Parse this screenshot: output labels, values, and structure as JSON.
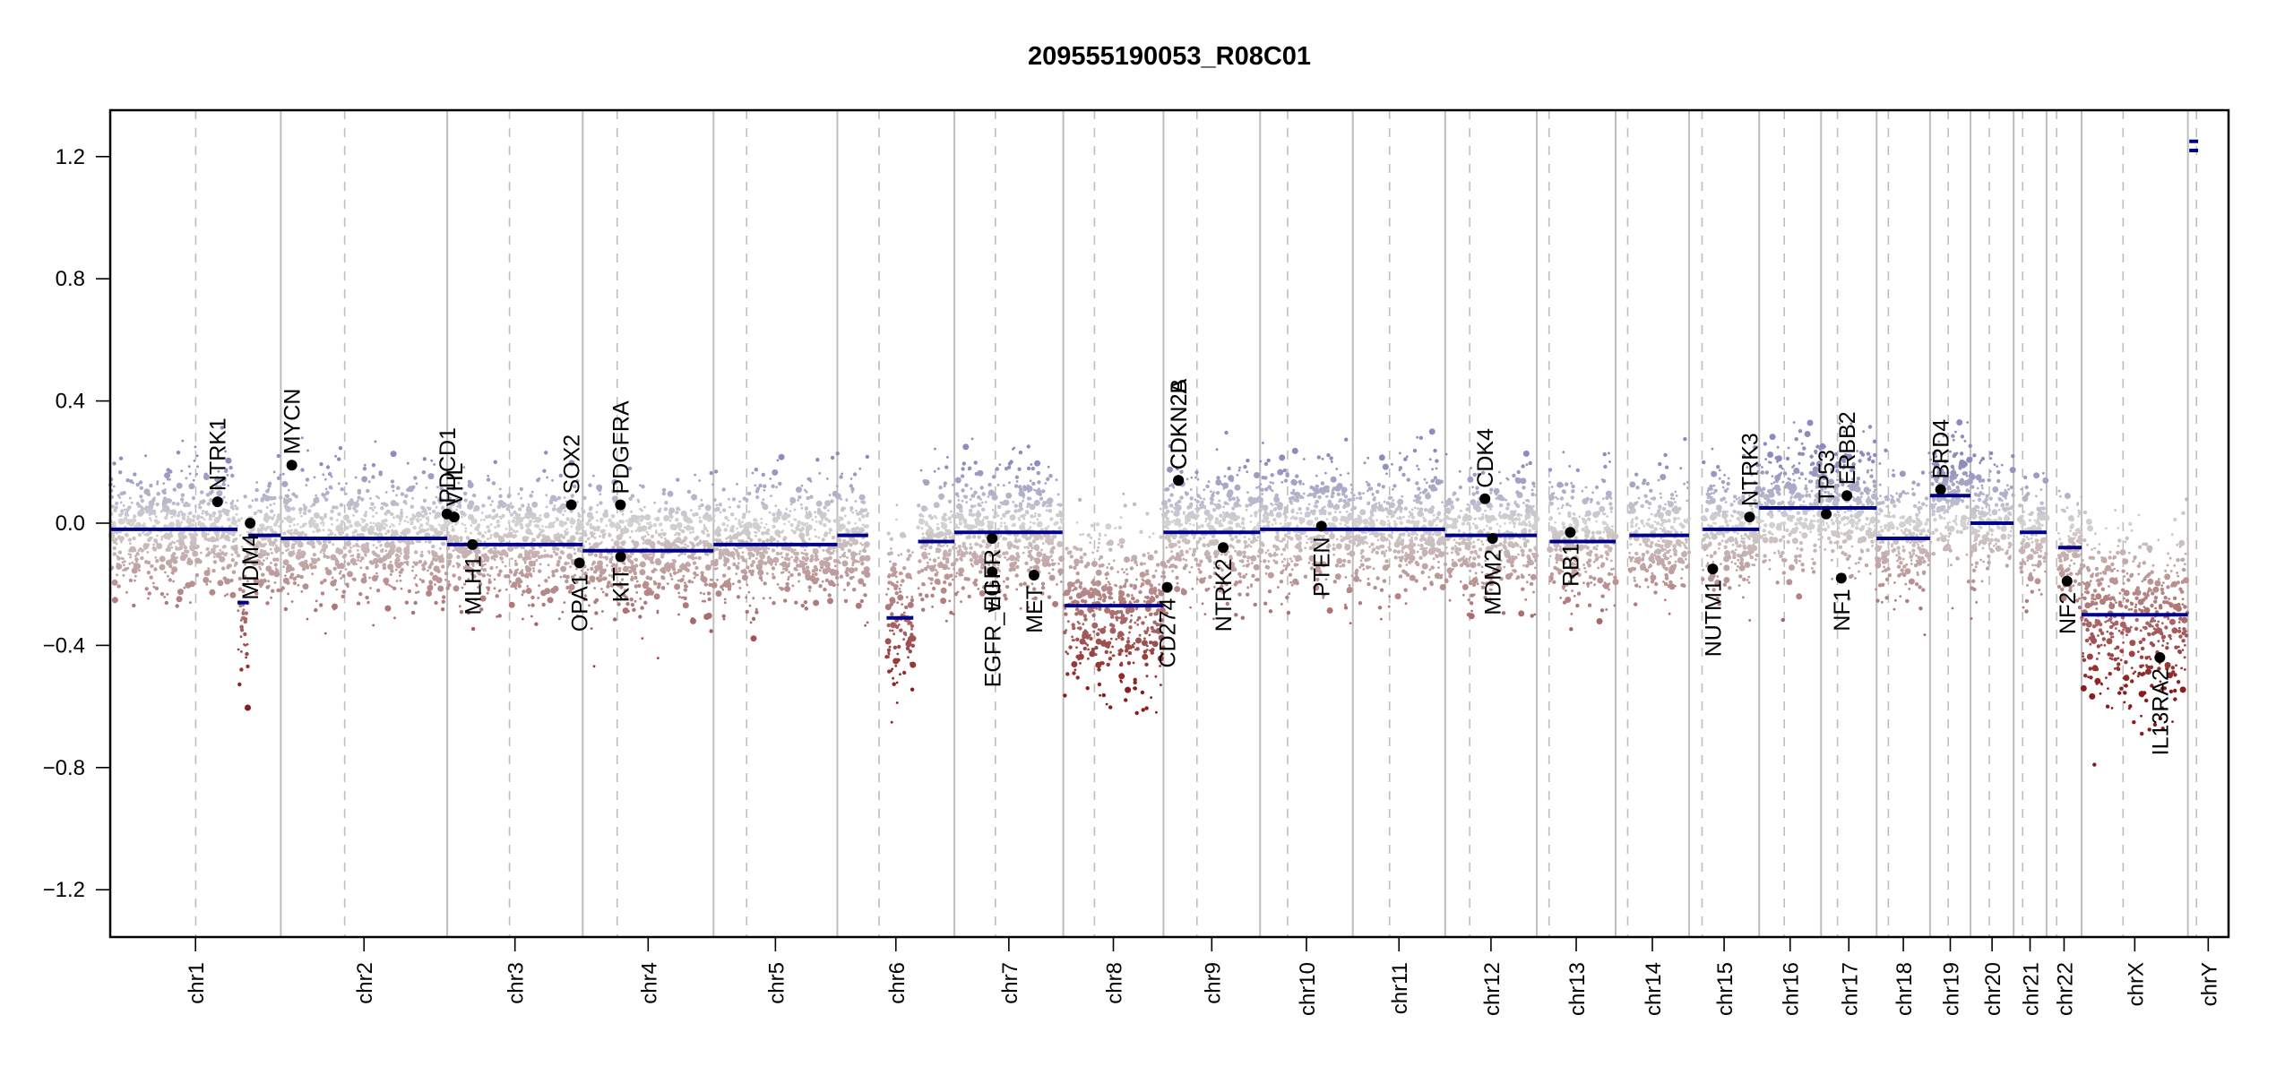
{
  "chart_data": {
    "type": "scatter",
    "title": "209555190053_R08C01",
    "xlabel": "",
    "ylabel": "",
    "ylim": [
      -1.35,
      1.35
    ],
    "yticks": [
      1.2,
      0.8,
      0.4,
      0.0,
      -0.4,
      -0.8,
      -1.2
    ],
    "ytick_labels": [
      "1.2",
      "0.8",
      "0.4",
      "0.0",
      "−0.4",
      "−0.8",
      "−1.2"
    ],
    "grid": false,
    "colors": {
      "gain": "#8b8bbf",
      "neutral": "#d3d3d3",
      "loss": "#8b1a1a",
      "segment": "#00008b",
      "gene_point": "#000000",
      "chrom_boundary": "#bebebe",
      "centromere": "#bebebe"
    },
    "chromosomes": [
      {
        "name": "chr1",
        "length_mb": 249.3,
        "centromere_mb": 125.0
      },
      {
        "name": "chr2",
        "length_mb": 243.2,
        "centromere_mb": 93.3
      },
      {
        "name": "chr3",
        "length_mb": 198.0,
        "centromere_mb": 91.0
      },
      {
        "name": "chr4",
        "length_mb": 191.2,
        "centromere_mb": 50.4
      },
      {
        "name": "chr5",
        "length_mb": 180.9,
        "centromere_mb": 48.4
      },
      {
        "name": "chr6",
        "length_mb": 171.1,
        "centromere_mb": 61.0
      },
      {
        "name": "chr7",
        "length_mb": 159.1,
        "centromere_mb": 59.9
      },
      {
        "name": "chr8",
        "length_mb": 146.4,
        "centromere_mb": 45.6
      },
      {
        "name": "chr9",
        "length_mb": 141.2,
        "centromere_mb": 49.0
      },
      {
        "name": "chr10",
        "length_mb": 135.5,
        "centromere_mb": 40.2
      },
      {
        "name": "chr11",
        "length_mb": 135.0,
        "centromere_mb": 53.7
      },
      {
        "name": "chr12",
        "length_mb": 133.9,
        "centromere_mb": 35.8
      },
      {
        "name": "chr13",
        "length_mb": 115.2,
        "centromere_mb": 17.9
      },
      {
        "name": "chr14",
        "length_mb": 107.3,
        "centromere_mb": 17.6
      },
      {
        "name": "chr15",
        "length_mb": 102.5,
        "centromere_mb": 19.0
      },
      {
        "name": "chr16",
        "length_mb": 90.4,
        "centromere_mb": 36.6
      },
      {
        "name": "chr17",
        "length_mb": 81.2,
        "centromere_mb": 24.0
      },
      {
        "name": "chr18",
        "length_mb": 78.1,
        "centromere_mb": 17.2
      },
      {
        "name": "chr19",
        "length_mb": 59.1,
        "centromere_mb": 26.5
      },
      {
        "name": "chr20",
        "length_mb": 63.0,
        "centromere_mb": 27.5
      },
      {
        "name": "chr21",
        "length_mb": 48.1,
        "centromere_mb": 13.2
      },
      {
        "name": "chr22",
        "length_mb": 51.3,
        "centromere_mb": 14.7
      },
      {
        "name": "chrX",
        "length_mb": 155.3,
        "centromere_mb": 60.6
      },
      {
        "name": "chrY",
        "length_mb": 59.4,
        "centromere_mb": 12.5
      }
    ],
    "segments": [
      {
        "chr": "chr1",
        "start_mb": 0,
        "end_mb": 186,
        "value": -0.02
      },
      {
        "chr": "chr1",
        "start_mb": 186,
        "end_mb": 202,
        "value": -0.26
      },
      {
        "chr": "chr1",
        "start_mb": 202,
        "end_mb": 249.3,
        "value": -0.04
      },
      {
        "chr": "chr2",
        "start_mb": 0,
        "end_mb": 243.2,
        "value": -0.05
      },
      {
        "chr": "chr3",
        "start_mb": 0,
        "end_mb": 198.0,
        "value": -0.07
      },
      {
        "chr": "chr4",
        "start_mb": 0,
        "end_mb": 191.2,
        "value": -0.09
      },
      {
        "chr": "chr5",
        "start_mb": 0,
        "end_mb": 180.9,
        "value": -0.07
      },
      {
        "chr": "chr6",
        "start_mb": 0,
        "end_mb": 45,
        "value": -0.04
      },
      {
        "chr": "chr6",
        "start_mb": 72,
        "end_mb": 111,
        "value": -0.31
      },
      {
        "chr": "chr6",
        "start_mb": 118,
        "end_mb": 171.1,
        "value": -0.06
      },
      {
        "chr": "chr7",
        "start_mb": 0,
        "end_mb": 158,
        "value": -0.03
      },
      {
        "chr": "chr8",
        "start_mb": 2,
        "end_mb": 146.4,
        "value": -0.27
      },
      {
        "chr": "chr9",
        "start_mb": 0,
        "end_mb": 141.2,
        "value": -0.03
      },
      {
        "chr": "chr10",
        "start_mb": 0,
        "end_mb": 135.5,
        "value": -0.02
      },
      {
        "chr": "chr11",
        "start_mb": 0,
        "end_mb": 135.0,
        "value": -0.02
      },
      {
        "chr": "chr12",
        "start_mb": 0,
        "end_mb": 133.9,
        "value": -0.04
      },
      {
        "chr": "chr13",
        "start_mb": 19,
        "end_mb": 115.2,
        "value": -0.06
      },
      {
        "chr": "chr14",
        "start_mb": 20,
        "end_mb": 107.3,
        "value": -0.04
      },
      {
        "chr": "chr15",
        "start_mb": 20,
        "end_mb": 102.5,
        "value": -0.02
      },
      {
        "chr": "chr16",
        "start_mb": 0,
        "end_mb": 90.4,
        "value": 0.05
      },
      {
        "chr": "chr17",
        "start_mb": 0,
        "end_mb": 81.2,
        "value": 0.05
      },
      {
        "chr": "chr18",
        "start_mb": 0,
        "end_mb": 78.1,
        "value": -0.05
      },
      {
        "chr": "chr19",
        "start_mb": 0,
        "end_mb": 59.1,
        "value": 0.09
      },
      {
        "chr": "chr20",
        "start_mb": 0,
        "end_mb": 63.0,
        "value": 0.0
      },
      {
        "chr": "chr21",
        "start_mb": 9,
        "end_mb": 48.1,
        "value": -0.03
      },
      {
        "chr": "chr22",
        "start_mb": 17,
        "end_mb": 51.3,
        "value": -0.08
      },
      {
        "chr": "chrX",
        "start_mb": 0,
        "end_mb": 155.3,
        "value": -0.3
      },
      {
        "chr": "chrY",
        "start_mb": 2,
        "end_mb": 15,
        "value": 1.25
      },
      {
        "chr": "chrY",
        "start_mb": 2,
        "end_mb": 15,
        "value": 1.22
      }
    ],
    "genes": [
      {
        "name": "NTRK1",
        "chr": "chr1",
        "pos_mb": 156.8,
        "value": 0.07,
        "label_side": "above"
      },
      {
        "name": "MDM4",
        "chr": "chr1",
        "pos_mb": 204.5,
        "value": 0.0,
        "label_side": "below"
      },
      {
        "name": "MYCN",
        "chr": "chr2",
        "pos_mb": 16.1,
        "value": 0.19,
        "label_side": "above"
      },
      {
        "name": "PDCD1",
        "chr": "chr2",
        "pos_mb": 242.8,
        "value": 0.03,
        "label_side": "above"
      },
      {
        "name": "VHL",
        "chr": "chr3",
        "pos_mb": 10.2,
        "value": 0.02,
        "label_side": "above"
      },
      {
        "name": "MLH1",
        "chr": "chr3",
        "pos_mb": 37.0,
        "value": -0.07,
        "label_side": "below"
      },
      {
        "name": "SOX2",
        "chr": "chr3",
        "pos_mb": 181.4,
        "value": 0.06,
        "label_side": "above"
      },
      {
        "name": "OPA1",
        "chr": "chr3",
        "pos_mb": 193.3,
        "value": -0.13,
        "label_side": "below"
      },
      {
        "name": "PDGFRA",
        "chr": "chr4",
        "pos_mb": 55.1,
        "value": 0.06,
        "label_side": "above"
      },
      {
        "name": "KIT",
        "chr": "chr4",
        "pos_mb": 55.5,
        "value": -0.11,
        "label_side": "below"
      },
      {
        "name": "EGFR",
        "chr": "chr7",
        "pos_mb": 55.1,
        "value": -0.05,
        "label_side": "below"
      },
      {
        "name": "EGFR_vIII",
        "chr": "chr7",
        "pos_mb": 55.2,
        "value": -0.16,
        "label_side": "below"
      },
      {
        "name": "MET",
        "chr": "chr7",
        "pos_mb": 116.3,
        "value": -0.17,
        "label_side": "below"
      },
      {
        "name": "CD274",
        "chr": "chr9",
        "pos_mb": 5.5,
        "value": -0.21,
        "label_side": "below"
      },
      {
        "name": "CDKN2A",
        "chr": "chr9",
        "pos_mb": 21.9,
        "value": 0.14,
        "label_side": "above"
      },
      {
        "name": "CDKN2B",
        "chr": "chr9",
        "pos_mb": 22.0,
        "value": 0.14,
        "label_side": "above"
      },
      {
        "name": "NTRK2",
        "chr": "chr9",
        "pos_mb": 87.3,
        "value": -0.08,
        "label_side": "below"
      },
      {
        "name": "PTEN",
        "chr": "chr10",
        "pos_mb": 89.6,
        "value": -0.01,
        "label_side": "below"
      },
      {
        "name": "CDK4",
        "chr": "chr12",
        "pos_mb": 58.1,
        "value": 0.08,
        "label_side": "above"
      },
      {
        "name": "MDM2",
        "chr": "chr12",
        "pos_mb": 69.2,
        "value": -0.05,
        "label_side": "below"
      },
      {
        "name": "RB1",
        "chr": "chr13",
        "pos_mb": 48.9,
        "value": -0.03,
        "label_side": "below"
      },
      {
        "name": "NUTM1",
        "chr": "chr15",
        "pos_mb": 34.6,
        "value": -0.15,
        "label_side": "below"
      },
      {
        "name": "NTRK3",
        "chr": "chr15",
        "pos_mb": 88.4,
        "value": 0.02,
        "label_side": "above"
      },
      {
        "name": "TP53",
        "chr": "chr17",
        "pos_mb": 7.6,
        "value": 0.03,
        "label_side": "above"
      },
      {
        "name": "NF1",
        "chr": "chr17",
        "pos_mb": 29.5,
        "value": -0.18,
        "label_side": "below"
      },
      {
        "name": "ERBB2",
        "chr": "chr17",
        "pos_mb": 37.8,
        "value": 0.09,
        "label_side": "above"
      },
      {
        "name": "BRD4",
        "chr": "chr19",
        "pos_mb": 15.4,
        "value": 0.11,
        "label_side": "above"
      },
      {
        "name": "NF2",
        "chr": "chr22",
        "pos_mb": 30.0,
        "value": -0.19,
        "label_side": "below"
      },
      {
        "name": "IL13RA2",
        "chr": "chrX",
        "pos_mb": 114.3,
        "value": -0.44,
        "label_side": "below"
      }
    ]
  }
}
